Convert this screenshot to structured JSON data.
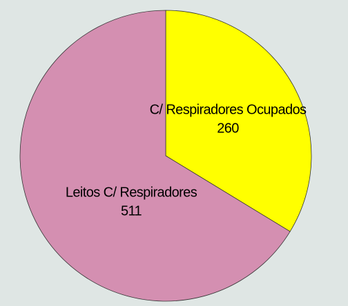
{
  "chart_data": {
    "type": "pie",
    "categories": [
      "C/ Respiradores Ocupados",
      "Leitos C/ Respiradores"
    ],
    "values": [
      260,
      511
    ],
    "colors": [
      "#ffff00",
      "#d48fb1"
    ]
  }
}
